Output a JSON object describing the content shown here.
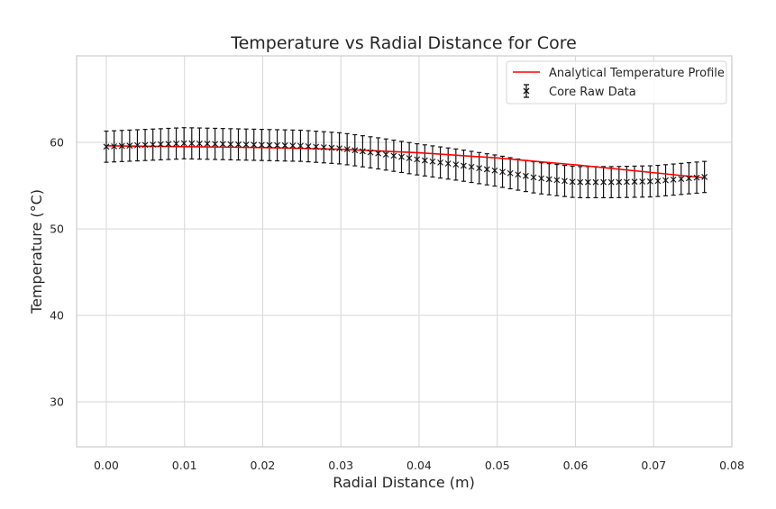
{
  "chart_data": {
    "type": "line",
    "title": "Temperature vs Radial Distance for Core",
    "xlabel": "Radial Distance (m)",
    "ylabel": "Temperature (°C)",
    "xlim": [
      -0.0038,
      0.08
    ],
    "ylim": [
      24.8,
      70
    ],
    "xticks": [
      0.0,
      0.01,
      0.02,
      0.03,
      0.04,
      0.05,
      0.06,
      0.07,
      0.08
    ],
    "xtick_labels": [
      "0.00",
      "0.01",
      "0.02",
      "0.03",
      "0.04",
      "0.05",
      "0.06",
      "0.07",
      "0.08"
    ],
    "yticks": [
      30,
      40,
      50,
      60
    ],
    "ytick_labels": [
      "30",
      "40",
      "50",
      "60"
    ],
    "grid": true,
    "legend_position": "top-right",
    "series": [
      {
        "name": "Analytical Temperature Profile",
        "kind": "line",
        "color": "#ff0000",
        "x": [
          0.0,
          0.01,
          0.02,
          0.03,
          0.04,
          0.05,
          0.06,
          0.0765
        ],
        "y": [
          59.6,
          59.5,
          59.4,
          59.2,
          58.8,
          58.2,
          57.4,
          55.9
        ]
      },
      {
        "name": "Core Raw Data",
        "kind": "errorbar",
        "color": "#111111",
        "marker": "x",
        "x_start": 0.0,
        "x_end": 0.0765,
        "n_points": 78,
        "error": 1.8,
        "x": [
          0.0,
          0.005,
          0.01,
          0.015,
          0.02,
          0.025,
          0.03,
          0.035,
          0.04,
          0.045,
          0.05,
          0.055,
          0.06,
          0.065,
          0.07,
          0.0765
        ],
        "y": [
          59.5,
          59.7,
          59.9,
          59.8,
          59.7,
          59.6,
          59.3,
          58.7,
          58.0,
          57.4,
          56.7,
          55.9,
          55.4,
          55.4,
          55.5,
          56.0
        ]
      }
    ]
  }
}
